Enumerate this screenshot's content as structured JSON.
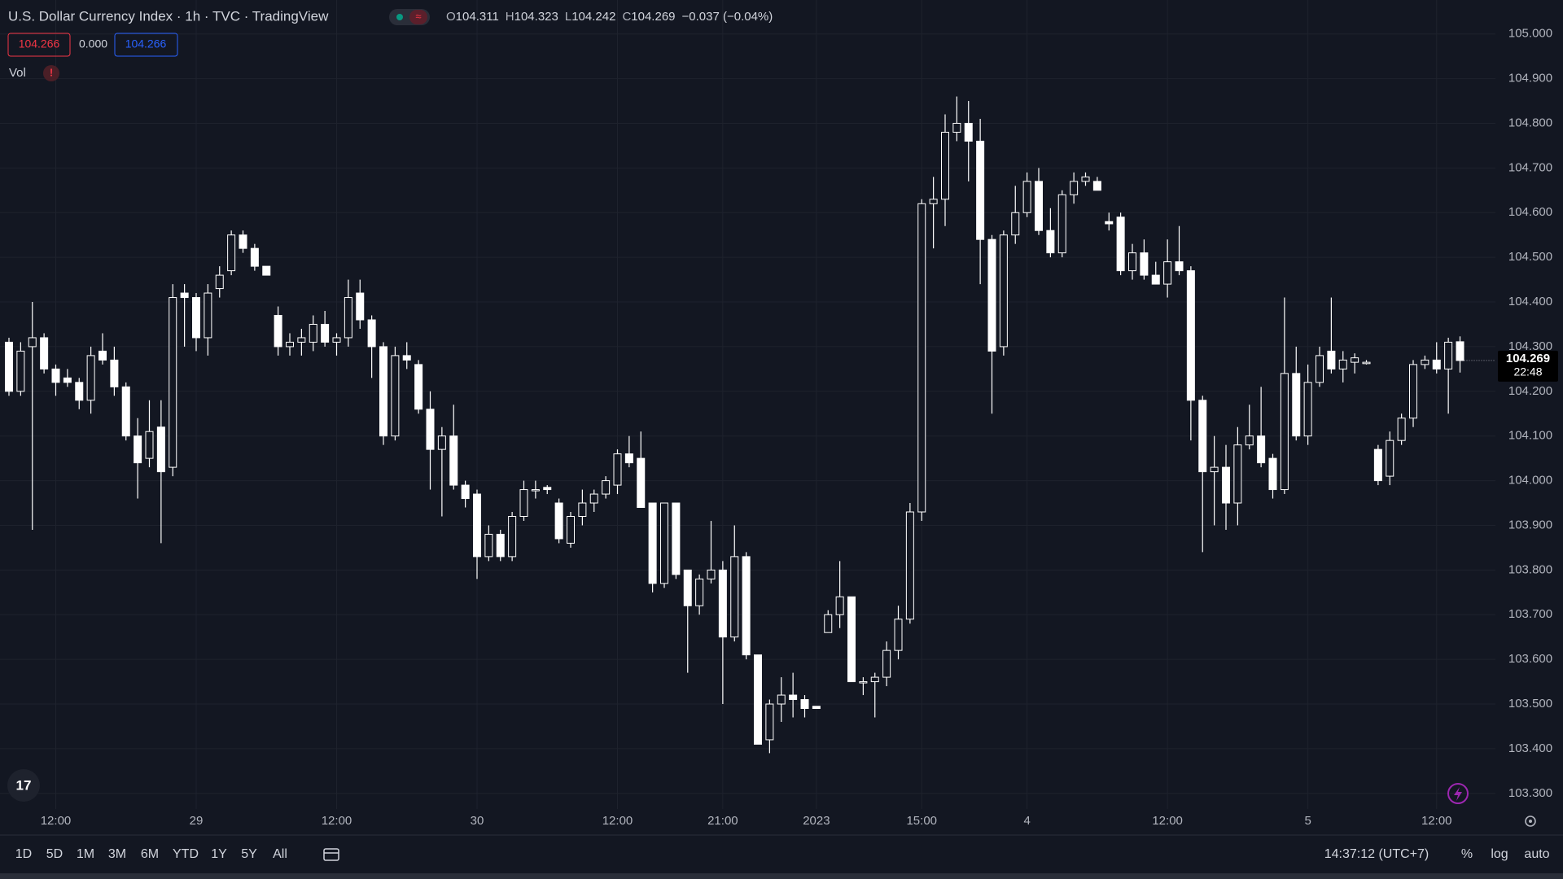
{
  "header": {
    "title": "U.S. Dollar Currency Index · 1h · TVC · TradingView",
    "ohlc": [
      {
        "label": "O",
        "value": "104.311"
      },
      {
        "label": "H",
        "value": "104.323"
      },
      {
        "label": "L",
        "value": "104.242"
      },
      {
        "label": "C",
        "value": "104.269"
      }
    ],
    "change": "−0.037 (−0.04%)",
    "bid": "104.266",
    "spread": "0.000",
    "ask": "104.266",
    "volume_label": "Vol"
  },
  "price_tag": {
    "countdown": "22:48"
  },
  "toolbar": {
    "ranges": [
      "1D",
      "5D",
      "1M",
      "3M",
      "6M",
      "YTD",
      "1Y",
      "5Y",
      "All"
    ],
    "clock": "14:37:12 (UTC+7)",
    "options": [
      "%",
      "log",
      "auto"
    ]
  },
  "chart_data": {
    "type": "candlestick",
    "up_color": "#131722",
    "down_color": "#ffffff",
    "border_color": "#ffffff",
    "wick_color": "#ffffff",
    "grid": true,
    "categories": [
      null,
      null,
      null,
      null,
      "12:00",
      null,
      null,
      null,
      null,
      null,
      null,
      null,
      null,
      null,
      null,
      null,
      "29",
      null,
      null,
      null,
      null,
      null,
      null,
      null,
      null,
      null,
      null,
      null,
      "12:00",
      null,
      null,
      null,
      null,
      null,
      null,
      null,
      null,
      null,
      null,
      null,
      "30",
      null,
      null,
      null,
      null,
      null,
      null,
      null,
      null,
      null,
      null,
      null,
      "12:00",
      null,
      null,
      null,
      null,
      null,
      null,
      null,
      null,
      "21:00",
      null,
      null,
      null,
      null,
      null,
      null,
      null,
      "2023",
      null,
      null,
      null,
      null,
      null,
      null,
      null,
      null,
      "15:00",
      null,
      null,
      null,
      null,
      null,
      null,
      null,
      null,
      "4",
      null,
      null,
      null,
      null,
      null,
      null,
      null,
      null,
      null,
      null,
      null,
      "12:00",
      null,
      null,
      null,
      null,
      null,
      null,
      null,
      null,
      null,
      null,
      null,
      "5",
      null,
      null,
      null,
      null,
      null,
      null,
      null,
      null,
      null,
      null,
      "12:00",
      null,
      null
    ],
    "open": [
      104.31,
      104.2,
      104.3,
      104.32,
      104.25,
      104.23,
      104.22,
      104.18,
      104.29,
      104.27,
      104.21,
      104.1,
      104.05,
      104.12,
      104.03,
      104.42,
      104.41,
      104.32,
      104.43,
      104.47,
      104.55,
      104.52,
      104.48,
      104.37,
      104.3,
      104.31,
      104.31,
      104.35,
      104.31,
      104.32,
      104.42,
      104.36,
      104.3,
      104.1,
      104.28,
      104.26,
      104.16,
      104.07,
      104.1,
      103.99,
      103.97,
      103.83,
      103.88,
      103.83,
      103.92,
      103.98,
      103.985,
      103.95,
      103.86,
      103.92,
      103.95,
      103.97,
      103.99,
      104.06,
      104.05,
      103.95,
      103.77,
      103.95,
      103.8,
      103.72,
      103.78,
      103.8,
      103.65,
      103.83,
      103.61,
      103.42,
      103.5,
      103.52,
      103.51,
      103.495,
      103.66,
      103.7,
      103.74,
      103.55,
      103.55,
      103.56,
      103.62,
      103.69,
      103.93,
      104.62,
      104.63,
      104.78,
      104.8,
      104.76,
      104.54,
      104.3,
      104.55,
      104.6,
      104.67,
      104.56,
      104.51,
      104.64,
      104.67,
      104.67,
      104.58,
      104.59,
      104.47,
      104.51,
      104.46,
      104.44,
      104.49,
      104.47,
      104.18,
      104.02,
      104.03,
      103.95,
      104.08,
      104.1,
      104.05,
      103.98,
      104.24,
      104.1,
      104.22,
      104.29,
      104.25,
      104.265,
      104.262,
      104.07,
      104.01,
      104.09,
      104.14,
      104.26,
      104.27,
      104.25,
      104.311
    ],
    "high": [
      104.32,
      104.31,
      104.4,
      104.33,
      104.26,
      104.25,
      104.23,
      104.3,
      104.33,
      104.3,
      104.22,
      104.14,
      104.18,
      104.18,
      104.44,
      104.44,
      104.42,
      104.44,
      104.48,
      104.56,
      104.56,
      104.53,
      104.48,
      104.39,
      104.33,
      104.34,
      104.37,
      104.38,
      104.33,
      104.45,
      104.45,
      104.37,
      104.31,
      104.3,
      104.31,
      104.27,
      104.2,
      104.12,
      104.17,
      104.0,
      103.98,
      103.9,
      103.89,
      103.93,
      104.0,
      104.0,
      103.99,
      103.96,
      103.93,
      103.98,
      103.98,
      104.01,
      104.07,
      104.1,
      104.11,
      103.95,
      103.95,
      103.95,
      103.8,
      103.79,
      103.91,
      103.82,
      103.9,
      103.84,
      103.61,
      103.51,
      103.56,
      103.57,
      103.52,
      103.495,
      103.71,
      103.82,
      103.74,
      103.56,
      103.57,
      103.64,
      103.72,
      103.95,
      104.63,
      104.68,
      104.82,
      104.86,
      104.85,
      104.81,
      104.55,
      104.56,
      104.66,
      104.69,
      104.7,
      104.61,
      104.65,
      104.69,
      104.69,
      104.68,
      104.6,
      104.6,
      104.53,
      104.54,
      104.49,
      104.54,
      104.57,
      104.48,
      104.19,
      104.1,
      104.08,
      104.12,
      104.17,
      104.21,
      104.06,
      104.41,
      104.3,
      104.26,
      104.3,
      104.41,
      104.29,
      104.285,
      104.27,
      104.08,
      104.11,
      104.15,
      104.27,
      104.28,
      104.31,
      104.32,
      104.323
    ],
    "low": [
      104.19,
      104.19,
      103.89,
      104.24,
      104.19,
      104.21,
      104.16,
      104.15,
      104.26,
      104.19,
      104.09,
      103.96,
      104.03,
      103.86,
      104.01,
      104.3,
      104.29,
      104.28,
      104.41,
      104.46,
      104.51,
      104.47,
      104.46,
      104.28,
      104.28,
      104.28,
      104.29,
      104.3,
      104.28,
      104.3,
      104.34,
      104.23,
      104.08,
      104.09,
      104.25,
      104.15,
      103.98,
      103.92,
      103.98,
      103.94,
      103.78,
      103.82,
      103.82,
      103.82,
      103.91,
      103.96,
      103.97,
      103.86,
      103.85,
      103.9,
      103.93,
      103.96,
      103.97,
      104.03,
      103.94,
      103.75,
      103.76,
      103.78,
      103.57,
      103.7,
      103.77,
      103.5,
      103.64,
      103.6,
      103.41,
      103.39,
      103.46,
      103.47,
      103.47,
      103.49,
      103.66,
      103.67,
      103.55,
      103.52,
      103.47,
      103.54,
      103.6,
      103.68,
      103.91,
      104.52,
      104.57,
      104.76,
      104.67,
      104.44,
      104.15,
      104.28,
      104.53,
      104.59,
      104.55,
      104.5,
      104.5,
      104.62,
      104.66,
      104.65,
      104.56,
      104.46,
      104.45,
      104.45,
      104.44,
      104.41,
      104.46,
      104.09,
      103.84,
      103.9,
      103.89,
      103.9,
      104.07,
      104.03,
      103.96,
      103.97,
      104.09,
      104.08,
      104.21,
      104.24,
      104.22,
      104.24,
      104.26,
      103.99,
      103.99,
      104.08,
      104.12,
      104.25,
      104.24,
      104.15,
      104.242
    ],
    "close": [
      104.2,
      104.29,
      104.32,
      104.25,
      104.22,
      104.22,
      104.18,
      104.28,
      104.27,
      104.21,
      104.1,
      104.04,
      104.11,
      104.02,
      104.41,
      104.41,
      104.32,
      104.42,
      104.46,
      104.55,
      104.52,
      104.48,
      104.46,
      104.3,
      104.31,
      104.32,
      104.35,
      104.31,
      104.32,
      104.41,
      104.36,
      104.3,
      104.1,
      104.28,
      104.27,
      104.16,
      104.07,
      104.1,
      103.99,
      103.96,
      103.83,
      103.88,
      103.83,
      103.92,
      103.98,
      103.98,
      103.98,
      103.87,
      103.92,
      103.95,
      103.97,
      104.0,
      104.06,
      104.04,
      103.94,
      103.77,
      103.95,
      103.79,
      103.72,
      103.78,
      103.8,
      103.65,
      103.83,
      103.61,
      103.41,
      103.5,
      103.52,
      103.51,
      103.49,
      103.49,
      103.7,
      103.74,
      103.55,
      103.55,
      103.56,
      103.62,
      103.69,
      103.93,
      104.62,
      104.63,
      104.78,
      104.8,
      104.76,
      104.54,
      104.29,
      104.55,
      104.6,
      104.67,
      104.56,
      104.51,
      104.64,
      104.67,
      104.68,
      104.65,
      104.575,
      104.47,
      104.51,
      104.46,
      104.44,
      104.49,
      104.47,
      104.18,
      104.02,
      104.03,
      103.95,
      104.08,
      104.1,
      104.04,
      103.98,
      104.24,
      104.1,
      104.22,
      104.28,
      104.25,
      104.27,
      104.275,
      104.265,
      104.0,
      104.09,
      104.14,
      104.26,
      104.27,
      104.25,
      104.31,
      104.269
    ],
    "ylim": [
      103.265,
      105.076
    ],
    "yticks": [
      {
        "value": 105.0,
        "label": "105.000"
      },
      {
        "value": 104.9,
        "label": "104.900"
      },
      {
        "value": 104.8,
        "label": "104.800"
      },
      {
        "value": 104.7,
        "label": "104.700"
      },
      {
        "value": 104.6,
        "label": "104.600"
      },
      {
        "value": 104.5,
        "label": "104.500"
      },
      {
        "value": 104.4,
        "label": "104.400"
      },
      {
        "value": 104.3,
        "label": "104.300"
      },
      {
        "value": 104.2,
        "label": "104.200"
      },
      {
        "value": 104.1,
        "label": "104.100"
      },
      {
        "value": 104.0,
        "label": "104.000"
      },
      {
        "value": 103.9,
        "label": "103.900"
      },
      {
        "value": 103.8,
        "label": "103.800"
      },
      {
        "value": 103.7,
        "label": "103.700"
      },
      {
        "value": 103.6,
        "label": "103.600"
      },
      {
        "value": 103.5,
        "label": "103.500"
      },
      {
        "value": 103.4,
        "label": "103.400"
      },
      {
        "value": 103.3,
        "label": "103.300"
      }
    ]
  }
}
